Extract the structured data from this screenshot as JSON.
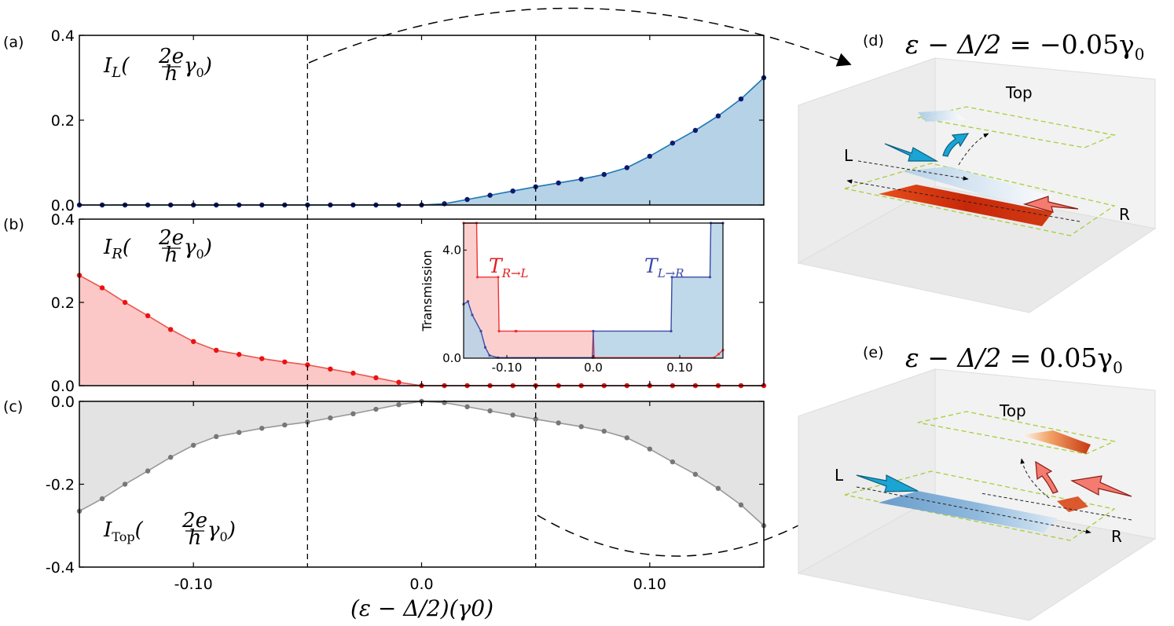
{
  "chart_data": [
    {
      "panel": "(a)",
      "type": "area",
      "annotation": "I_L(2e/h γ0)",
      "annotation_parts": {
        "sym": "I",
        "sub": "L",
        "num": "2e",
        "den": "h",
        "tail": "γ",
        "tail_sub": "0"
      },
      "color": "#1f77b4",
      "fill": "#b5d2e6",
      "marker_color": "#0d1a6e",
      "xlim": [
        -0.15,
        0.15
      ],
      "ylim": [
        0.0,
        0.4
      ],
      "yticks": [
        "0.4",
        "0.2",
        "0.0"
      ],
      "x": [
        -0.15,
        -0.14,
        -0.13,
        -0.12,
        -0.11,
        -0.1,
        -0.09,
        -0.08,
        -0.07,
        -0.06,
        -0.05,
        -0.04,
        -0.03,
        -0.02,
        -0.01,
        0.0,
        0.01,
        0.02,
        0.03,
        0.04,
        0.05,
        0.06,
        0.07,
        0.08,
        0.09,
        0.1,
        0.11,
        0.12,
        0.13,
        0.14,
        0.15
      ],
      "y": [
        0,
        0,
        0,
        0,
        0,
        0,
        0,
        0,
        0,
        0,
        0,
        0,
        0,
        0,
        0,
        0,
        0.003,
        0.013,
        0.023,
        0.033,
        0.043,
        0.052,
        0.061,
        0.072,
        0.088,
        0.115,
        0.146,
        0.176,
        0.21,
        0.25,
        0.3
      ]
    },
    {
      "panel": "(b)",
      "type": "area",
      "annotation": "I_R(2e/h γ0)",
      "annotation_parts": {
        "sym": "I",
        "sub": "R",
        "num": "2e",
        "den": "h",
        "tail": "γ",
        "tail_sub": "0"
      },
      "color": "#e8574f",
      "fill": "#fbc7c7",
      "marker_color": "#ee1111",
      "xlim": [
        -0.15,
        0.15
      ],
      "ylim": [
        0.0,
        0.4
      ],
      "yticks": [
        "0.4",
        "0.2",
        "0.0"
      ],
      "x": [
        -0.15,
        -0.14,
        -0.13,
        -0.12,
        -0.11,
        -0.1,
        -0.09,
        -0.08,
        -0.07,
        -0.06,
        -0.05,
        -0.04,
        -0.03,
        -0.02,
        -0.01,
        0.0,
        0.01,
        0.02,
        0.03,
        0.04,
        0.05,
        0.06,
        0.07,
        0.08,
        0.09,
        0.1,
        0.11,
        0.12,
        0.13,
        0.14,
        0.15
      ],
      "y": [
        0.265,
        0.235,
        0.2,
        0.168,
        0.135,
        0.106,
        0.085,
        0.075,
        0.065,
        0.057,
        0.05,
        0.04,
        0.03,
        0.019,
        0.008,
        0,
        0,
        0,
        0,
        0,
        0,
        0,
        0,
        0,
        0,
        0,
        0,
        0,
        0,
        0,
        0
      ]
    },
    {
      "panel": "(c)",
      "type": "area",
      "annotation": "I_Top(2e/h γ0)",
      "annotation_parts": {
        "sym": "I",
        "sub": "Top",
        "num": "2e",
        "den": "h",
        "tail": "γ",
        "tail_sub": "0"
      },
      "color": "#999999",
      "fill": "#e3e3e3",
      "marker_color": "#777777",
      "xlim": [
        -0.15,
        0.15
      ],
      "ylim": [
        -0.4,
        0.0
      ],
      "yticks": [
        "0.0",
        "-0.2",
        "-0.4"
      ],
      "xticks": [
        "-0.10",
        "0.0",
        "0.10"
      ],
      "xlabel": "(ε − Δ/2)(γ0)",
      "x": [
        -0.15,
        -0.14,
        -0.13,
        -0.12,
        -0.11,
        -0.1,
        -0.09,
        -0.08,
        -0.07,
        -0.06,
        -0.05,
        -0.04,
        -0.03,
        -0.02,
        -0.01,
        0.0,
        0.01,
        0.02,
        0.03,
        0.04,
        0.05,
        0.06,
        0.07,
        0.08,
        0.09,
        0.1,
        0.11,
        0.12,
        0.13,
        0.14,
        0.15
      ],
      "y": [
        -0.265,
        -0.235,
        -0.2,
        -0.168,
        -0.135,
        -0.106,
        -0.085,
        -0.075,
        -0.065,
        -0.057,
        -0.05,
        -0.04,
        -0.03,
        -0.019,
        -0.008,
        0,
        -0.003,
        -0.013,
        -0.023,
        -0.033,
        -0.043,
        -0.052,
        -0.061,
        -0.072,
        -0.088,
        -0.115,
        -0.146,
        -0.176,
        -0.21,
        -0.25,
        -0.3
      ]
    },
    {
      "panel": "inset",
      "type": "area",
      "ylabel": "Transmission",
      "xlim": [
        -0.15,
        0.15
      ],
      "ylim": [
        0,
        5
      ],
      "xticks": [
        "-0.10",
        "0.0",
        "0.10"
      ],
      "yticks": [
        "4.0",
        "0.0"
      ],
      "series": [
        {
          "name": "T_{R→L}",
          "label_parts": {
            "sym": "T",
            "sub": "R→L"
          },
          "color": "#ee3333",
          "fill": "#fbc7c7",
          "x": [
            -0.15,
            -0.135,
            -0.134,
            -0.11,
            -0.109,
            -0.09,
            -0.089,
            0.0,
            0.001,
            0.14,
            0.145,
            0.15
          ],
          "y": [
            5,
            5,
            3,
            3,
            1,
            1,
            1,
            1,
            0.02,
            0.02,
            0.15,
            0.3
          ]
        },
        {
          "name": "T_{L→R}",
          "label_parts": {
            "sym": "T",
            "sub": "L→R"
          },
          "color": "#3b4aa6",
          "fill": "#b5d2e6",
          "x": [
            -0.15,
            -0.145,
            -0.14,
            -0.13,
            -0.125,
            -0.12,
            -0.11,
            -0.001,
            0.0,
            0.09,
            0.091,
            0.135,
            0.136,
            0.15
          ],
          "y": [
            2.0,
            2.1,
            1.6,
            1.0,
            0.4,
            0.1,
            0.02,
            0.02,
            1,
            1,
            3,
            3,
            5,
            5
          ]
        }
      ]
    }
  ],
  "panel_tags": {
    "a": "(a)",
    "b": "(b)",
    "c": "(c)",
    "d": "(d)",
    "e": "(e)"
  },
  "right_panels": {
    "d": {
      "title_lhs": "ε − Δ/2 = ",
      "title_rhs": "−0.05γ",
      "title_sub": "0",
      "top_label": "Top",
      "left_label": "L",
      "right_label": "R"
    },
    "e": {
      "title_lhs": "ε − Δ/2 = ",
      "title_rhs": "0.05γ",
      "title_sub": "0",
      "top_label": "Top",
      "left_label": "L",
      "right_label": "R"
    }
  }
}
